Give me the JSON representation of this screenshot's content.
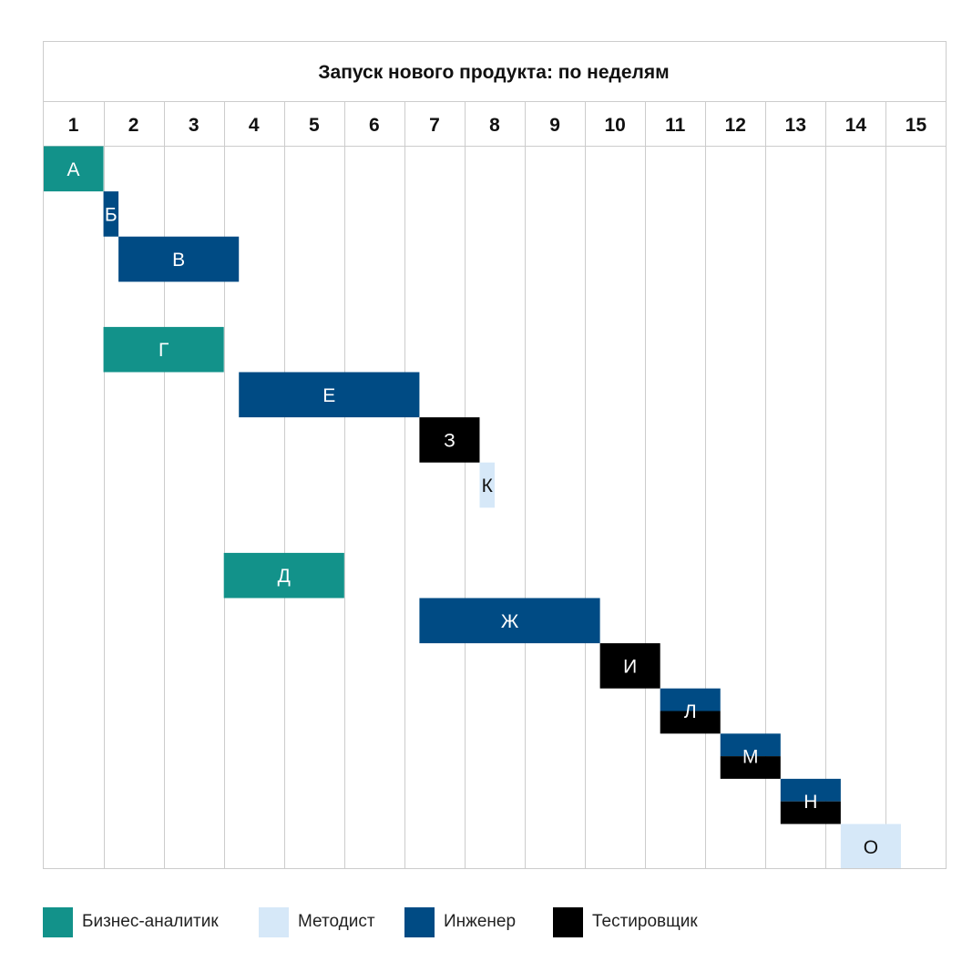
{
  "chart_data": {
    "type": "gantt",
    "title": "Запуск нового продукта: по неделям",
    "x_unit_label": "",
    "weeks": [
      "1",
      "2",
      "3",
      "4",
      "5",
      "6",
      "7",
      "8",
      "9",
      "10",
      "11",
      "12",
      "13",
      "14",
      "15"
    ],
    "xlim": [
      0,
      15
    ],
    "grid": true,
    "legend_position": "bottom",
    "roles": [
      {
        "key": "analyst",
        "name": "Бизнес-аналитик",
        "color": "#12928a"
      },
      {
        "key": "methodist",
        "name": "Методист",
        "color": "#d6e8f8"
      },
      {
        "key": "engineer",
        "name": "Инженер",
        "color": "#004b84"
      },
      {
        "key": "tester",
        "name": "Тестировщик",
        "color": "#000000"
      }
    ],
    "tasks": [
      {
        "label": "А",
        "row": 0,
        "start": 0,
        "end": 1,
        "roles": [
          "analyst"
        ]
      },
      {
        "label": "Б",
        "row": 1,
        "start": 1,
        "end": 1.25,
        "roles": [
          "engineer"
        ]
      },
      {
        "label": "В",
        "row": 2,
        "start": 1.25,
        "end": 3.25,
        "roles": [
          "engineer"
        ]
      },
      {
        "label": "Г",
        "row": 4,
        "start": 1,
        "end": 3,
        "roles": [
          "analyst"
        ]
      },
      {
        "label": "Е",
        "row": 5,
        "start": 3.25,
        "end": 6.25,
        "roles": [
          "engineer"
        ]
      },
      {
        "label": "З",
        "row": 6,
        "start": 6.25,
        "end": 7.25,
        "roles": [
          "tester"
        ]
      },
      {
        "label": "К",
        "row": 7,
        "start": 7.25,
        "end": 7.5,
        "roles": [
          "methodist"
        ]
      },
      {
        "label": "Д",
        "row": 9,
        "start": 3,
        "end": 5,
        "roles": [
          "analyst"
        ]
      },
      {
        "label": "Ж",
        "row": 10,
        "start": 6.25,
        "end": 9.25,
        "roles": [
          "engineer"
        ]
      },
      {
        "label": "И",
        "row": 11,
        "start": 9.25,
        "end": 10.25,
        "roles": [
          "tester"
        ]
      },
      {
        "label": "Л",
        "row": 12,
        "start": 10.25,
        "end": 11.25,
        "roles": [
          "engineer",
          "tester"
        ]
      },
      {
        "label": "М",
        "row": 13,
        "start": 11.25,
        "end": 12.25,
        "roles": [
          "engineer",
          "tester"
        ]
      },
      {
        "label": "Н",
        "row": 14,
        "start": 12.25,
        "end": 13.25,
        "roles": [
          "engineer",
          "tester"
        ]
      },
      {
        "label": "О",
        "row": 15,
        "start": 13.25,
        "end": 14.25,
        "roles": [
          "methodist"
        ]
      }
    ]
  }
}
